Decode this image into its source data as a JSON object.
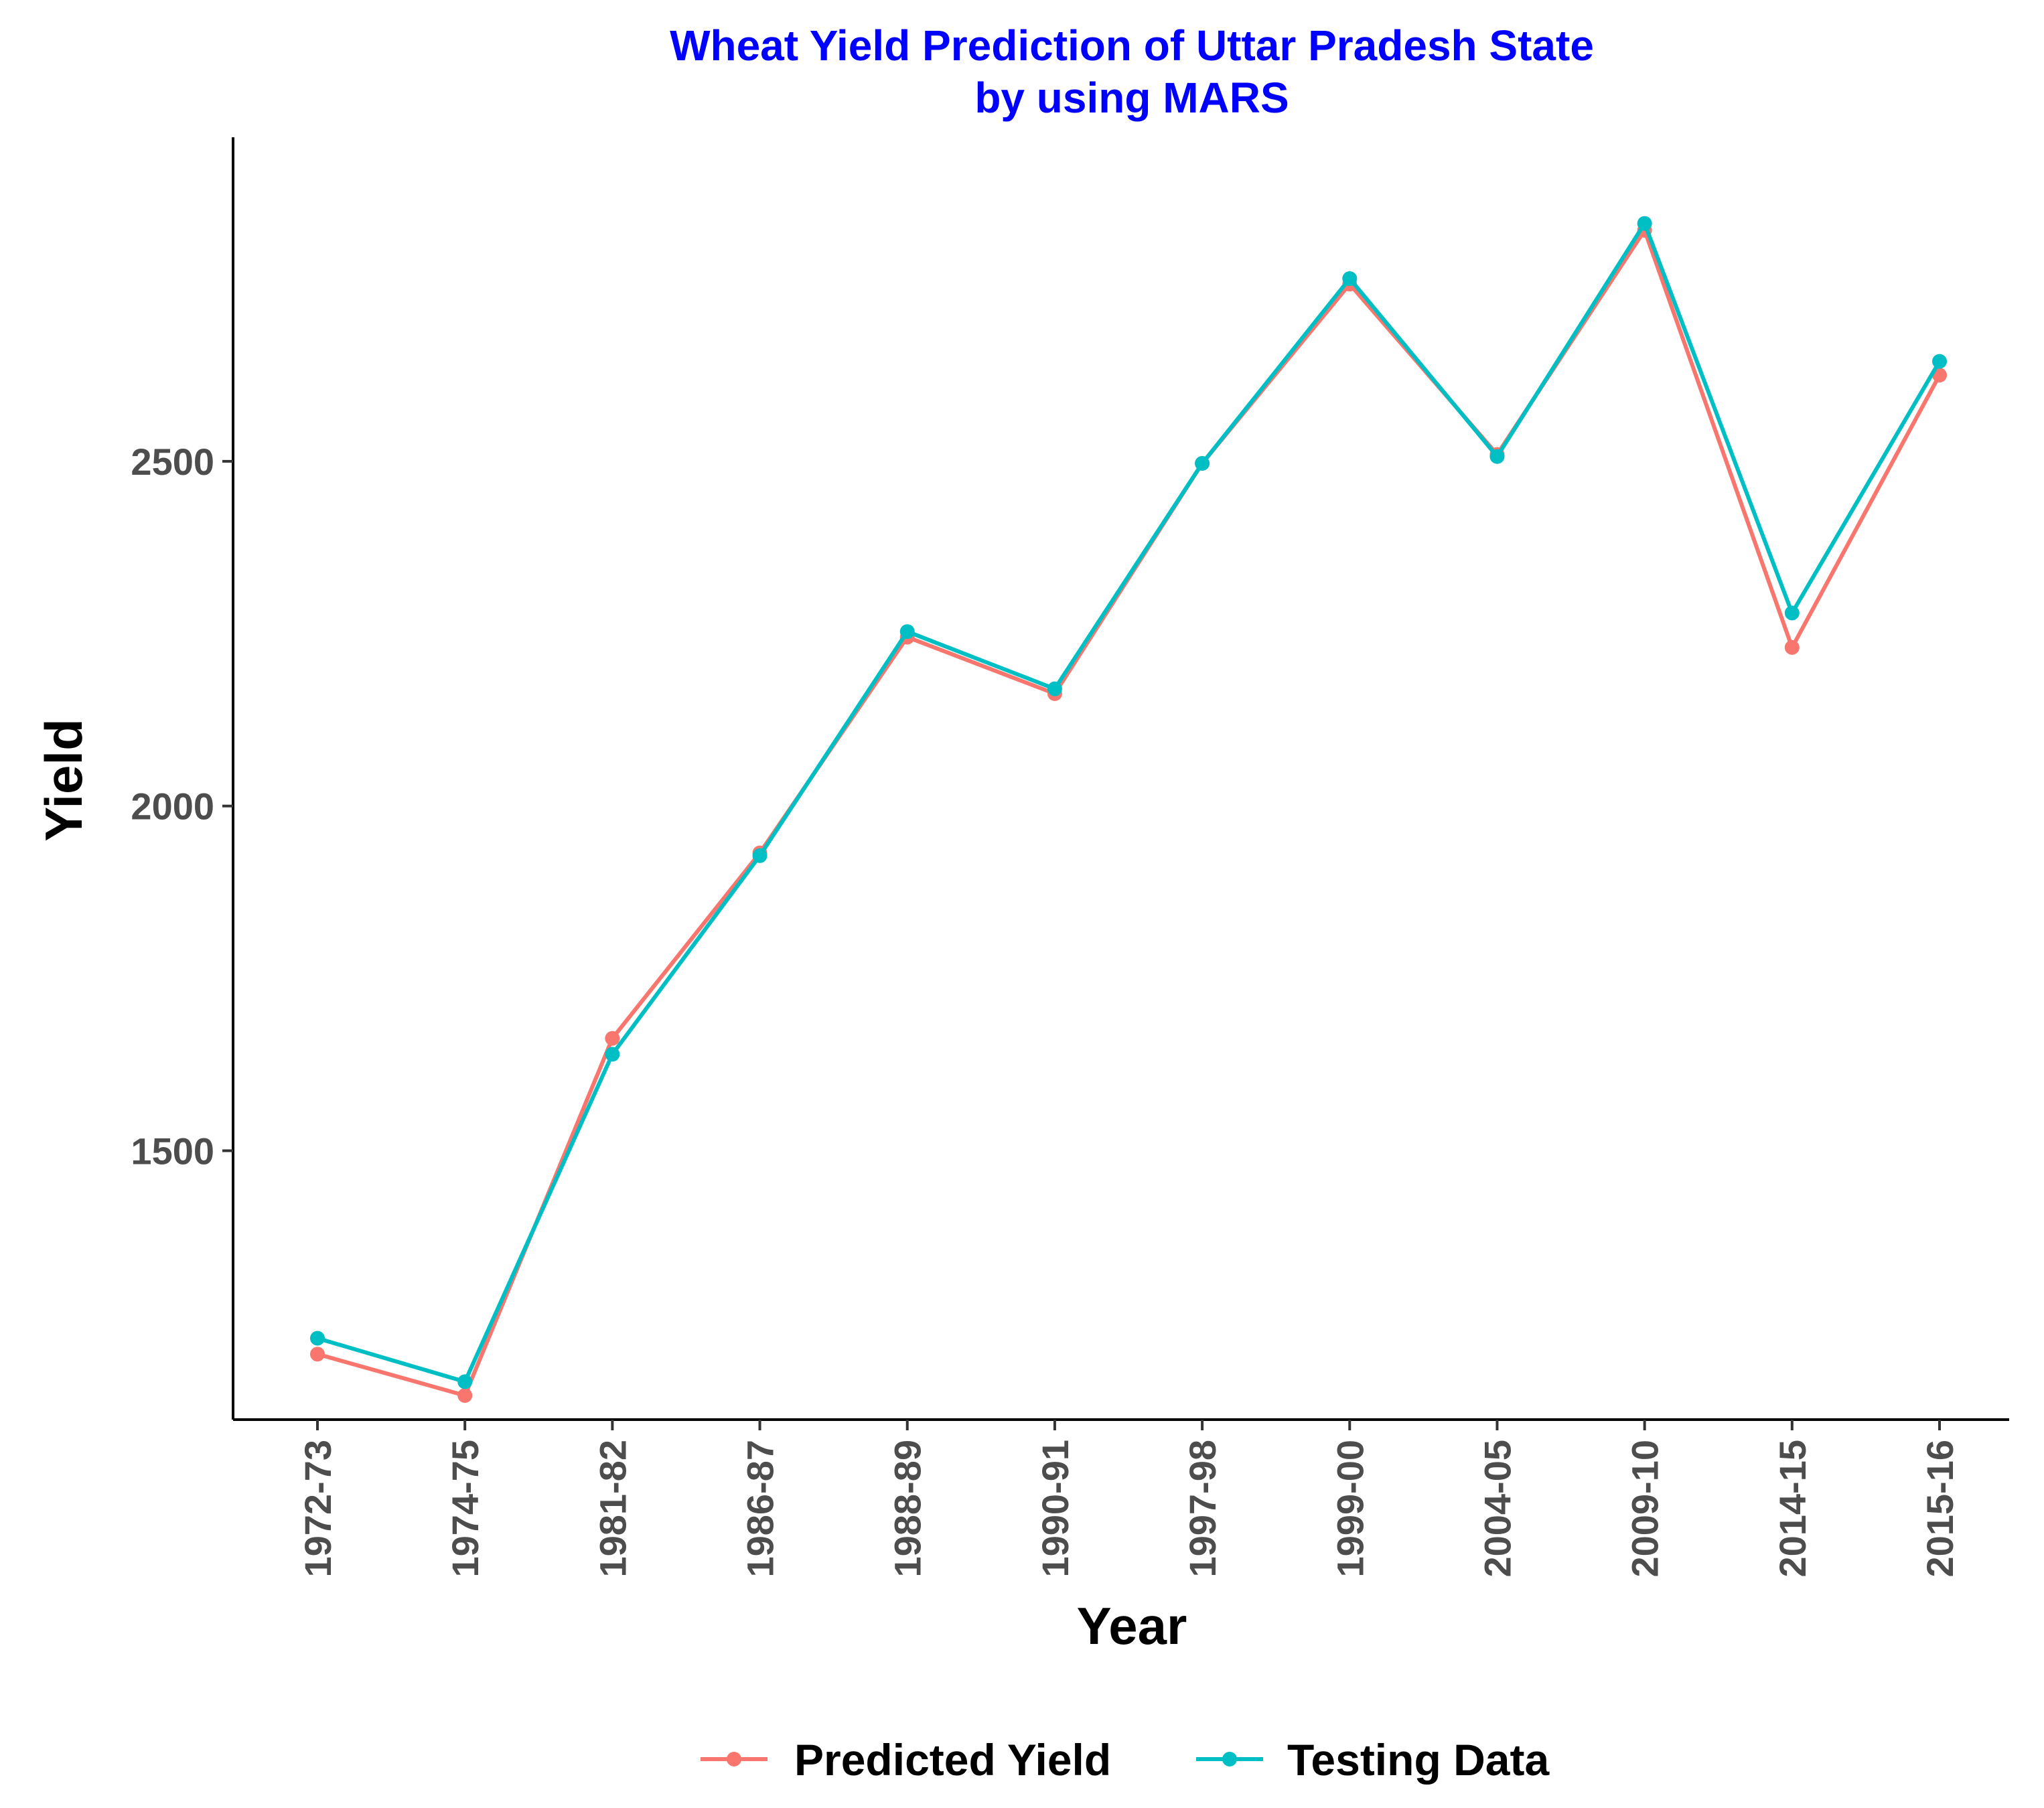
{
  "chart_data": {
    "type": "line",
    "title": "Wheat Yield Prediction of Uttar Pradesh State",
    "subtitle": "by using MARS",
    "title_color": "#0000ff",
    "xlabel": "Year",
    "ylabel": "Yield",
    "categories": [
      "1972-73",
      "1974-75",
      "1981-82",
      "1986-87",
      "1988-89",
      "1990-91",
      "1997-98",
      "1999-00",
      "2004-05",
      "2009-10",
      "2014-15",
      "2015-16"
    ],
    "yticks": [
      1500,
      2000,
      2500
    ],
    "ylim": [
      1110,
      2970
    ],
    "grid": false,
    "legend_position": "bottom",
    "series": [
      {
        "name": "Predicted Yield",
        "color": "#f8766d",
        "values": [
          1205,
          1145,
          1663,
          1932,
          2245,
          2163,
          2497,
          2757,
          2510,
          2835,
          2230,
          2625
        ]
      },
      {
        "name": "Testing Data",
        "color": "#00bfc4",
        "values": [
          1228,
          1165,
          1640,
          1928,
          2253,
          2170,
          2497,
          2765,
          2507,
          2845,
          2280,
          2645
        ]
      }
    ]
  }
}
